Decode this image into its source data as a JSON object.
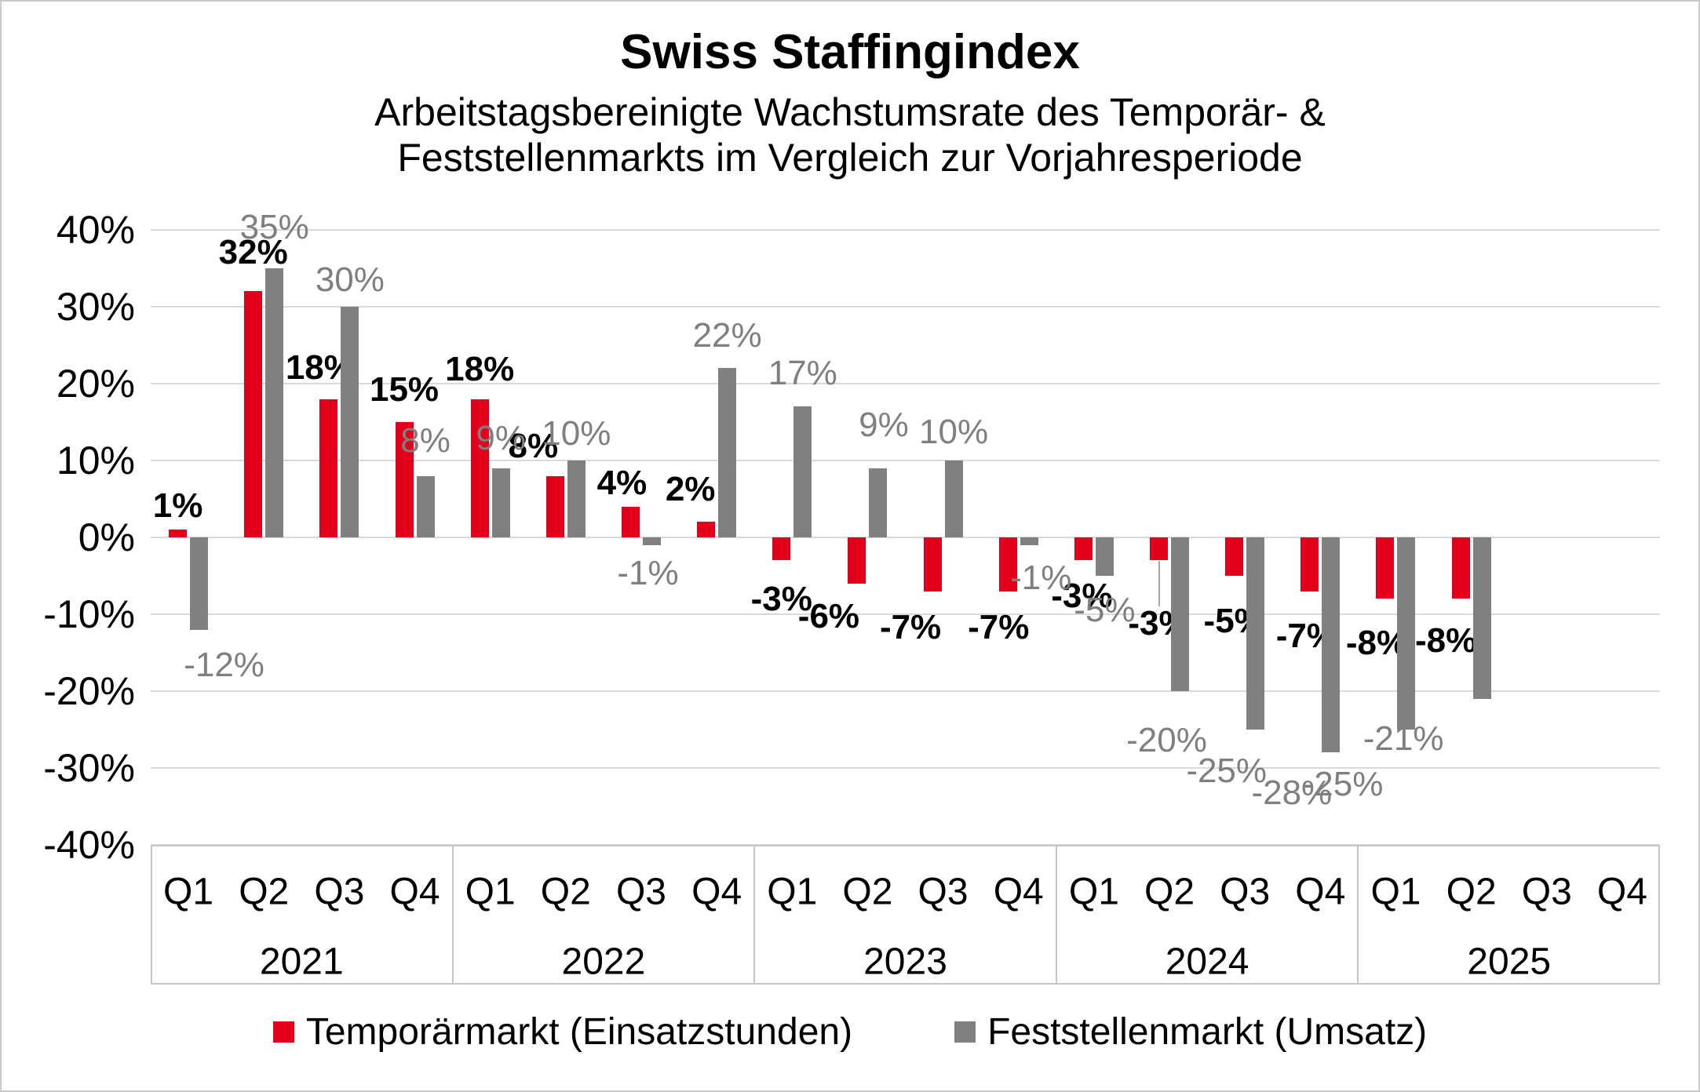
{
  "chart_data": {
    "type": "bar",
    "title": "Swiss Staffingindex",
    "subtitle_line1": "Arbeitstagsbereinigte Wachstumsrate des Temporär- &",
    "subtitle_line2": "Feststellenmarkts im Vergleich zur Vorjahresperiode",
    "y_axis": {
      "min": -40,
      "max": 40,
      "step": 10,
      "grid": true,
      "tick_labels": [
        "40%",
        "30%",
        "20%",
        "10%",
        "0%",
        "-10%",
        "-20%",
        "-30%",
        "-40%"
      ]
    },
    "x_axis": {
      "years": [
        "2021",
        "2022",
        "2023",
        "2024",
        "2025"
      ],
      "quarters": [
        "Q1",
        "Q2",
        "Q3",
        "Q4"
      ]
    },
    "legend_position": "bottom",
    "series": [
      {
        "name": "Temporärmarkt (Einsatzstunden)",
        "color": "#e2001a",
        "label_style": "bold-black",
        "values": [
          1,
          32,
          18,
          15,
          18,
          8,
          4,
          2,
          -3,
          -6,
          -7,
          -7,
          -3,
          -3,
          -5,
          -7,
          -8,
          -8,
          null,
          null
        ],
        "labels": [
          "1%",
          "32%",
          "18%",
          "15%",
          "18%",
          "8%",
          "4%",
          "2%",
          "-3%",
          "-6%",
          "-7%",
          "-7%",
          "-3%",
          "-3%",
          "-5%",
          "-7%",
          "-8%",
          "-8%",
          "",
          ""
        ],
        "label_dx": [
          0,
          0,
          -11,
          0,
          0,
          -28,
          -11,
          -20,
          0,
          -36,
          -28,
          -12,
          -2,
          0,
          0,
          -4,
          -11,
          -19,
          0,
          0
        ],
        "label_dy": [
          0,
          -19,
          -10,
          -11,
          -8,
          -8,
          0,
          -11,
          20,
          12,
          16,
          16,
          16,
          51,
          28,
          27,
          27,
          24,
          0,
          0
        ],
        "label_leader_index": 13
      },
      {
        "name": "Feststellenmarkt (Umsatz)",
        "color": "#808080",
        "label_style": "gray",
        "values": [
          -12,
          35,
          30,
          8,
          9,
          10,
          -1,
          22,
          17,
          9,
          10,
          -1,
          -5,
          -20,
          -25,
          -28,
          -25,
          -21,
          null,
          null
        ],
        "labels": [
          "-12%",
          "35%",
          "30%",
          "8%",
          "9%",
          "10%",
          "-1%",
          "22%",
          "17%",
          "9%",
          "10%",
          "-1%",
          "-5%",
          "-20%",
          "-25%",
          "-28%",
          "-25%",
          "-21%",
          "",
          ""
        ],
        "label_dx": [
          32,
          0,
          0,
          0,
          0,
          0,
          -5,
          0,
          0,
          7,
          0,
          15,
          0,
          -17,
          -37,
          -50,
          -81,
          -100,
          0,
          0
        ],
        "label_dy": [
          15,
          -22,
          -4,
          -15,
          -8,
          -4,
          6,
          -11,
          -12,
          -25,
          -6,
          12,
          14,
          33,
          23,
          22,
          40,
          21,
          0,
          0
        ],
        "label_leader_index": -1
      }
    ],
    "colors": {
      "gridline": "#d9d9d9",
      "axis_border": "#c6c6c6",
      "gray_label": "#7f7f7f",
      "leader_line": "#a6a6a6",
      "background": "#ffffff"
    }
  }
}
